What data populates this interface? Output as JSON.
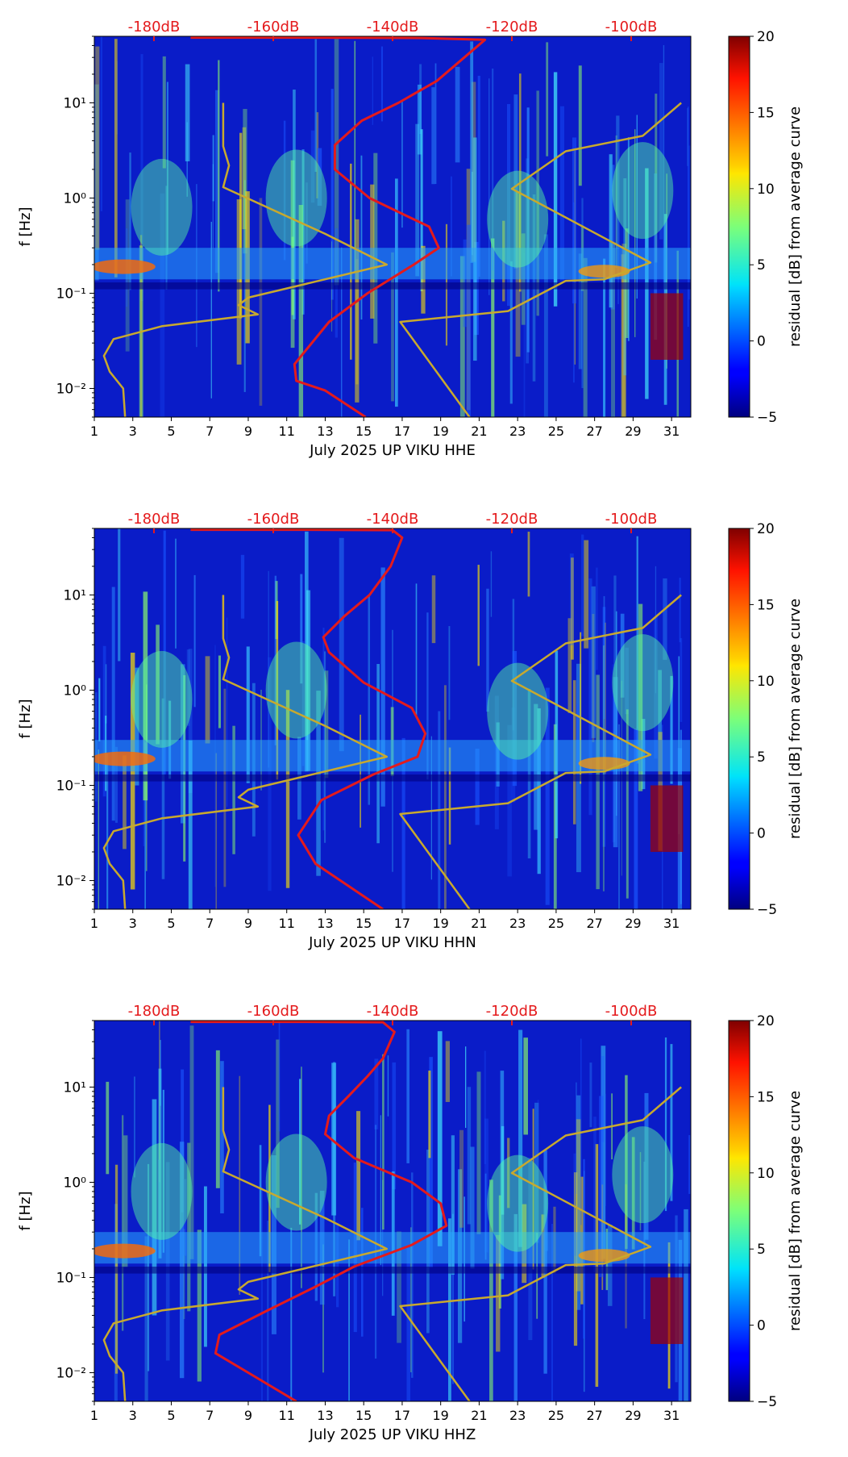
{
  "chart_data": [
    {
      "type": "heatmap",
      "component": "HHE",
      "xlabel": "July 2025 UP VIKU  HHE",
      "ylabel": "f [Hz]",
      "colorbar_label": "residual [dB] from average curve",
      "colorbar_ticks": [
        "20",
        "15",
        "10",
        "5",
        "0",
        "−5"
      ],
      "colorbar_range": [
        -5,
        20
      ],
      "x_ticks": [
        "1",
        "3",
        "5",
        "7",
        "9",
        "11",
        "13",
        "15",
        "17",
        "19",
        "21",
        "23",
        "25",
        "27",
        "29",
        "31"
      ],
      "xlim": [
        1,
        32
      ],
      "y_ticks": [
        "10⁻²",
        "10⁻¹",
        "10⁰",
        "10¹"
      ],
      "y_tick_exponents": [
        -2,
        -1,
        0,
        1
      ],
      "ylim": [
        0.005,
        50
      ],
      "top_db_labels": [
        "-180dB",
        "-160dB",
        "-140dB",
        "-120dB",
        "-100dB"
      ],
      "top_db_day_positions": [
        4.1,
        10.3,
        16.5,
        22.7,
        28.9
      ],
      "series": [
        {
          "name": "noise model (gold)",
          "color": "#c8a92e",
          "points": [
            [
              2.6,
              0.005
            ],
            [
              2.5,
              0.01
            ],
            [
              1.8,
              0.015
            ],
            [
              1.5,
              0.022
            ],
            [
              2.0,
              0.033
            ],
            [
              4.5,
              0.045
            ],
            [
              9.5,
              0.06
            ],
            [
              8.5,
              0.075
            ],
            [
              9.0,
              0.09
            ],
            [
              16.2,
              0.2
            ],
            [
              13,
              0.42
            ],
            [
              7.7,
              1.3
            ],
            [
              8.0,
              2.2
            ],
            [
              7.7,
              3.5
            ],
            [
              7.7,
              10
            ],
            [
              20.5,
              0.005
            ],
            [
              16.9,
              0.05
            ],
            [
              22.5,
              0.065
            ],
            [
              25.5,
              0.135
            ],
            [
              27.5,
              0.14
            ],
            [
              29.9,
              0.21
            ],
            [
              22.7,
              1.25
            ],
            [
              25.5,
              3.1
            ],
            [
              29.5,
              4.5
            ],
            [
              31.5,
              10
            ]
          ]
        },
        {
          "name": "average curve (red)",
          "color": "#e41a1c",
          "points": [
            [
              15.1,
              0.005
            ],
            [
              13.0,
              0.0095
            ],
            [
              11.5,
              0.012
            ],
            [
              11.4,
              0.018
            ],
            [
              13.2,
              0.05
            ],
            [
              15.2,
              0.1
            ],
            [
              17.6,
              0.2
            ],
            [
              18.9,
              0.3
            ],
            [
              18.4,
              0.5
            ],
            [
              15.3,
              1.0
            ],
            [
              13.5,
              2.0
            ],
            [
              13.5,
              3.6
            ],
            [
              14.9,
              6.5
            ],
            [
              16.8,
              10
            ],
            [
              18.8,
              17
            ],
            [
              21.3,
              46
            ],
            [
              18,
              48
            ],
            [
              12,
              48.5
            ],
            [
              6,
              48.5
            ]
          ]
        }
      ]
    },
    {
      "type": "heatmap",
      "component": "HHN",
      "xlabel": "July 2025 UP VIKU  HHN",
      "ylabel": "f [Hz]",
      "colorbar_label": "residual [dB] from average curve",
      "colorbar_ticks": [
        "20",
        "15",
        "10",
        "5",
        "0",
        "−5"
      ],
      "colorbar_range": [
        -5,
        20
      ],
      "x_ticks": [
        "1",
        "3",
        "5",
        "7",
        "9",
        "11",
        "13",
        "15",
        "17",
        "19",
        "21",
        "23",
        "25",
        "27",
        "29",
        "31"
      ],
      "xlim": [
        1,
        32
      ],
      "y_ticks": [
        "10⁻²",
        "10⁻¹",
        "10⁰",
        "10¹"
      ],
      "y_tick_exponents": [
        -2,
        -1,
        0,
        1
      ],
      "ylim": [
        0.005,
        50
      ],
      "top_db_labels": [
        "-180dB",
        "-160dB",
        "-140dB",
        "-120dB",
        "-100dB"
      ],
      "top_db_day_positions": [
        4.1,
        10.3,
        16.5,
        22.7,
        28.9
      ],
      "series": [
        {
          "name": "noise model (gold)",
          "color": "#c8a92e",
          "points": [
            [
              2.6,
              0.005
            ],
            [
              2.5,
              0.01
            ],
            [
              1.8,
              0.015
            ],
            [
              1.5,
              0.022
            ],
            [
              2.0,
              0.033
            ],
            [
              4.5,
              0.045
            ],
            [
              9.5,
              0.06
            ],
            [
              8.5,
              0.075
            ],
            [
              9.0,
              0.09
            ],
            [
              16.2,
              0.2
            ],
            [
              13,
              0.42
            ],
            [
              7.7,
              1.3
            ],
            [
              8.0,
              2.2
            ],
            [
              7.7,
              3.5
            ],
            [
              7.7,
              10
            ],
            [
              20.5,
              0.005
            ],
            [
              16.9,
              0.05
            ],
            [
              22.5,
              0.065
            ],
            [
              25.5,
              0.135
            ],
            [
              27.5,
              0.14
            ],
            [
              29.9,
              0.21
            ],
            [
              22.7,
              1.25
            ],
            [
              25.5,
              3.1
            ],
            [
              29.5,
              4.5
            ],
            [
              31.5,
              10
            ]
          ]
        },
        {
          "name": "average curve (red)",
          "color": "#e41a1c",
          "points": [
            [
              16.0,
              0.005
            ],
            [
              12.5,
              0.015
            ],
            [
              11.6,
              0.03
            ],
            [
              12.8,
              0.07
            ],
            [
              15.5,
              0.13
            ],
            [
              17.8,
              0.2
            ],
            [
              18.2,
              0.35
            ],
            [
              17.5,
              0.65
            ],
            [
              15.0,
              1.2
            ],
            [
              13.2,
              2.5
            ],
            [
              12.9,
              3.6
            ],
            [
              14.0,
              6
            ],
            [
              15.3,
              10
            ],
            [
              16.4,
              20
            ],
            [
              17.0,
              40
            ],
            [
              16.5,
              48
            ],
            [
              12,
              48.5
            ],
            [
              6,
              48.5
            ]
          ]
        }
      ]
    },
    {
      "type": "heatmap",
      "component": "HHZ",
      "xlabel": "July 2025 UP VIKU  HHZ",
      "ylabel": "f [Hz]",
      "colorbar_label": "residual [dB] from average curve",
      "colorbar_ticks": [
        "20",
        "15",
        "10",
        "5",
        "0",
        "−5"
      ],
      "colorbar_range": [
        -5,
        20
      ],
      "x_ticks": [
        "1",
        "3",
        "5",
        "7",
        "9",
        "11",
        "13",
        "15",
        "17",
        "19",
        "21",
        "23",
        "25",
        "27",
        "29",
        "31"
      ],
      "xlim": [
        1,
        32
      ],
      "y_ticks": [
        "10⁻²",
        "10⁻¹",
        "10⁰",
        "10¹"
      ],
      "y_tick_exponents": [
        -2,
        -1,
        0,
        1
      ],
      "ylim": [
        0.005,
        50
      ],
      "top_db_labels": [
        "-180dB",
        "-160dB",
        "-140dB",
        "-120dB",
        "-100dB"
      ],
      "top_db_day_positions": [
        4.1,
        10.3,
        16.5,
        22.7,
        28.9
      ],
      "series": [
        {
          "name": "noise model (gold)",
          "color": "#c8a92e",
          "points": [
            [
              2.6,
              0.005
            ],
            [
              2.5,
              0.01
            ],
            [
              1.8,
              0.015
            ],
            [
              1.5,
              0.022
            ],
            [
              2.0,
              0.033
            ],
            [
              4.5,
              0.045
            ],
            [
              9.5,
              0.06
            ],
            [
              8.5,
              0.075
            ],
            [
              9.0,
              0.09
            ],
            [
              16.2,
              0.2
            ],
            [
              13,
              0.42
            ],
            [
              7.7,
              1.3
            ],
            [
              8.0,
              2.2
            ],
            [
              7.7,
              3.5
            ],
            [
              7.7,
              10
            ],
            [
              20.5,
              0.005
            ],
            [
              16.9,
              0.05
            ],
            [
              22.5,
              0.065
            ],
            [
              25.5,
              0.135
            ],
            [
              27.5,
              0.14
            ],
            [
              29.9,
              0.21
            ],
            [
              22.7,
              1.25
            ],
            [
              25.5,
              3.1
            ],
            [
              29.5,
              4.5
            ],
            [
              31.5,
              10
            ]
          ]
        },
        {
          "name": "average curve (red)",
          "color": "#e41a1c",
          "points": [
            [
              11.5,
              0.005
            ],
            [
              9.0,
              0.01
            ],
            [
              7.3,
              0.016
            ],
            [
              7.5,
              0.025
            ],
            [
              10,
              0.045
            ],
            [
              12.5,
              0.08
            ],
            [
              14.5,
              0.13
            ],
            [
              17.5,
              0.22
            ],
            [
              19.3,
              0.35
            ],
            [
              19.0,
              0.6
            ],
            [
              17.5,
              1.0
            ],
            [
              14.5,
              1.8
            ],
            [
              13.0,
              3.2
            ],
            [
              13.2,
              5
            ],
            [
              14.2,
              8
            ],
            [
              15.2,
              13
            ],
            [
              16.0,
              20
            ],
            [
              16.6,
              38
            ],
            [
              16.0,
              48
            ],
            [
              12,
              48.5
            ],
            [
              6,
              48.5
            ]
          ]
        }
      ]
    }
  ]
}
